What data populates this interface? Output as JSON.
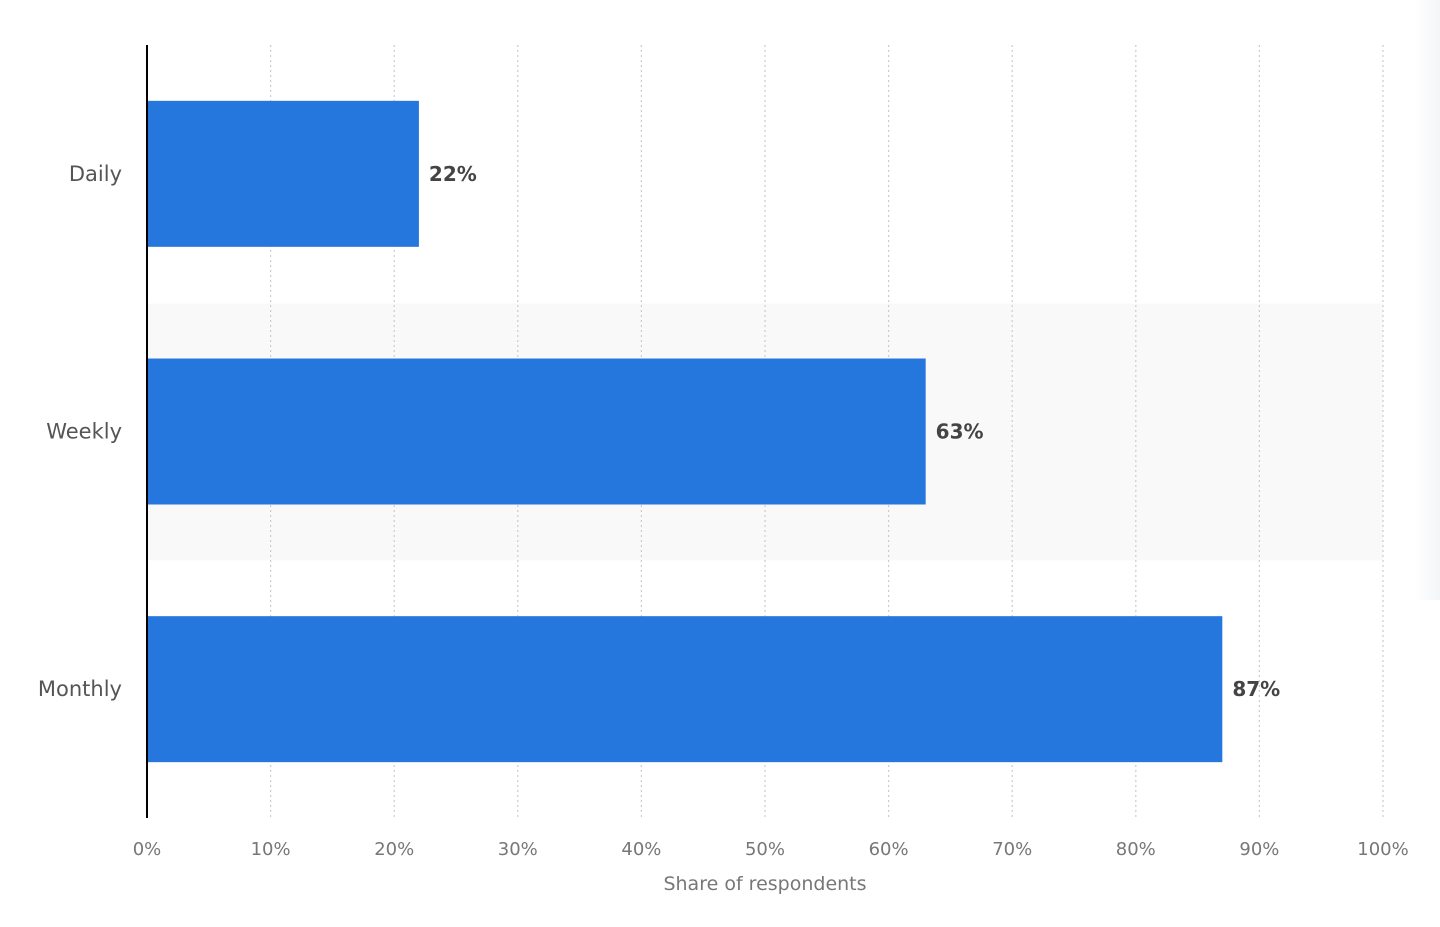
{
  "chart_data": {
    "type": "bar",
    "orientation": "horizontal",
    "categories": [
      "Daily",
      "Weekly",
      "Monthly"
    ],
    "values": [
      22,
      63,
      87
    ],
    "value_labels": [
      "22%",
      "63%",
      "87%"
    ],
    "title": "",
    "xlabel": "Share of respondents",
    "ylabel": "",
    "xlim": [
      0,
      100
    ],
    "x_ticks": [
      "0%",
      "10%",
      "20%",
      "30%",
      "40%",
      "50%",
      "60%",
      "70%",
      "80%",
      "90%",
      "100%"
    ],
    "grid": true,
    "legend": "none",
    "bar_color": "#2677dd",
    "band_color": "#f9f9f9",
    "grid_color": "#cccccc",
    "axis_color": "#000000"
  }
}
